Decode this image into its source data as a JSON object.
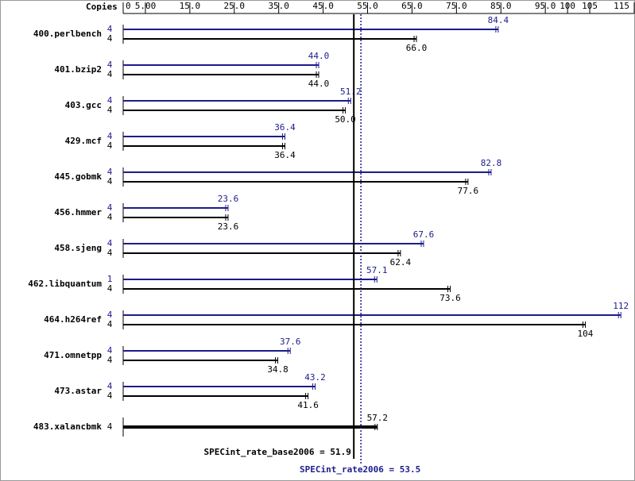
{
  "chart_data": {
    "type": "bar",
    "axis_label": "Copies",
    "xlim": [
      0,
      115
    ],
    "xticks": [
      0,
      {
        "value": 5,
        "label": "5.00"
      },
      {
        "value": 15,
        "label": "15.0"
      },
      {
        "value": 25,
        "label": "25.0"
      },
      {
        "value": 35,
        "label": "35.0"
      },
      {
        "value": 45,
        "label": "45.0"
      },
      {
        "value": 55,
        "label": "55.0"
      },
      {
        "value": 65,
        "label": "65.0"
      },
      {
        "value": 75,
        "label": "75.0"
      },
      {
        "value": 85,
        "label": "85.0"
      },
      {
        "value": 95,
        "label": "95.0"
      },
      100,
      105,
      115
    ],
    "categories": [
      "400.perlbench",
      "401.bzip2",
      "403.gcc",
      "429.mcf",
      "445.gobmk",
      "456.hmmer",
      "458.sjeng",
      "462.libquantum",
      "464.h264ref",
      "471.omnetpp",
      "473.astar",
      "483.xalancbmk"
    ],
    "series": [
      {
        "color": "#1c1c8c",
        "values": [
          84.4,
          44.0,
          51.2,
          36.4,
          82.8,
          23.6,
          67.6,
          57.1,
          112,
          37.6,
          43.2,
          null
        ],
        "value_labels": [
          "84.4",
          "44.0",
          "51.2",
          "36.4",
          "82.8",
          "23.6",
          "67.6",
          "57.1",
          "112",
          "37.6",
          "43.2",
          null
        ],
        "copies": [
          4,
          4,
          4,
          4,
          4,
          4,
          4,
          1,
          4,
          4,
          4,
          null
        ]
      },
      {
        "color": "#000000",
        "values": [
          66.0,
          44.0,
          50.0,
          36.4,
          77.6,
          23.6,
          62.4,
          73.6,
          104,
          34.8,
          41.6,
          57.2
        ],
        "value_labels": [
          "66.0",
          "44.0",
          "50.0",
          "36.4",
          "77.6",
          "23.6",
          "62.4",
          "73.6",
          "104",
          "34.8",
          "41.6",
          "57.2"
        ],
        "copies": [
          4,
          4,
          4,
          4,
          4,
          4,
          4,
          4,
          4,
          4,
          4,
          4
        ]
      }
    ],
    "reference_lines": [
      {
        "label": "SPECint_rate_base2006 = 51.9",
        "value": 51.9,
        "color": "#000000",
        "style": "solid"
      },
      {
        "label": "SPECint_rate2006 = 53.5",
        "value": 53.5,
        "color": "#1c1c8c",
        "style": "dotted"
      }
    ]
  }
}
